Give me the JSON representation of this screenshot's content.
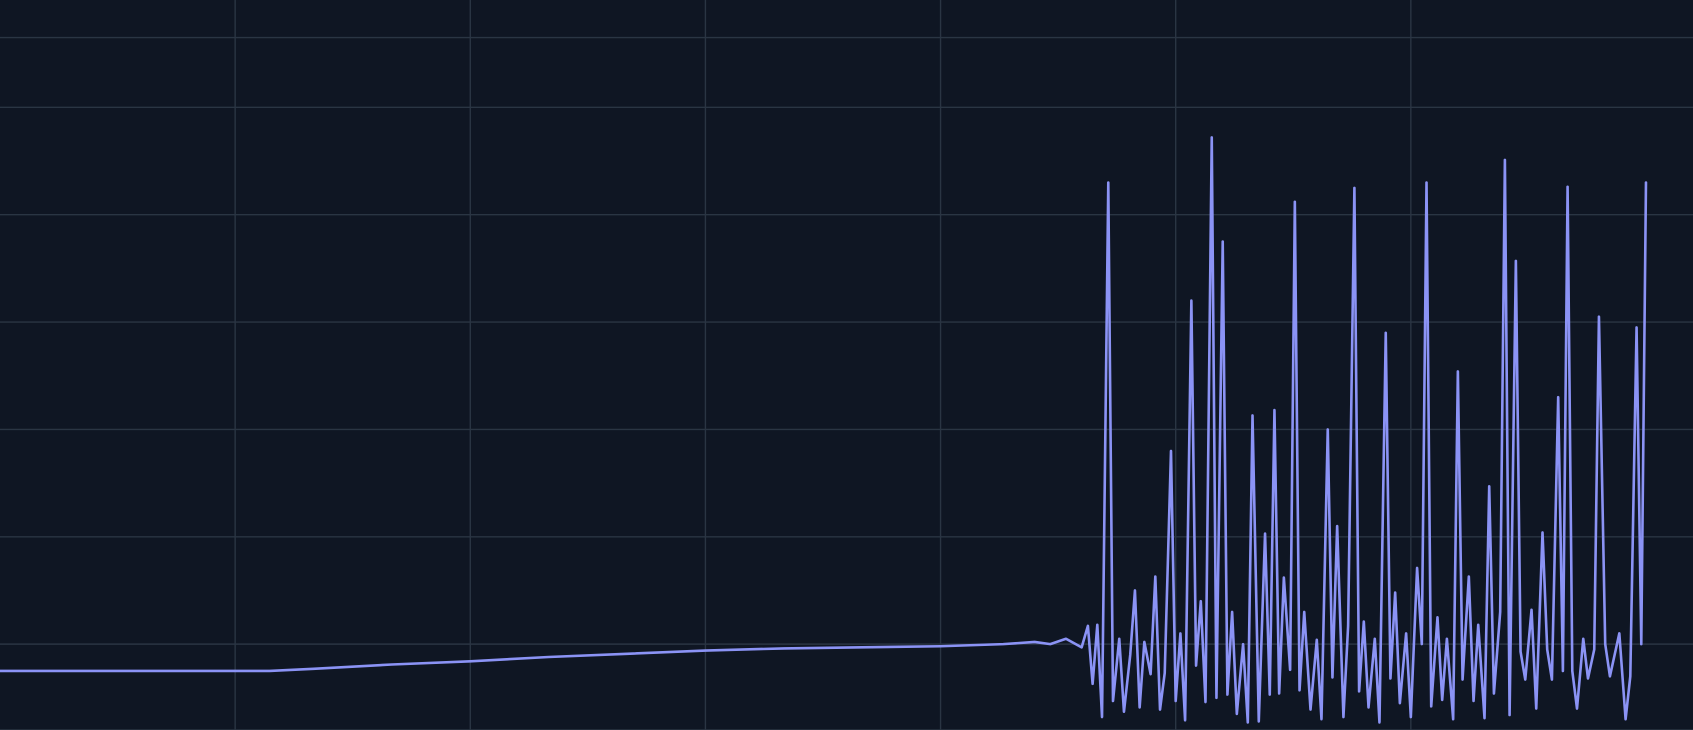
{
  "colors": {
    "background": "#0f1623",
    "grid": "#2a3543",
    "series": "#8b93f5"
  },
  "chart_data": {
    "type": "line",
    "title": "",
    "xlabel": "",
    "ylabel": "",
    "grid": true,
    "legend": "none",
    "xlim": [
      0,
      1080
    ],
    "ylim": [
      -0.8,
      6.0
    ],
    "x_gridlines": [
      150,
      300,
      450,
      600,
      750,
      900
    ],
    "y_gridlines": [
      -0.8,
      0,
      1,
      2,
      3,
      4,
      5,
      5.65
    ],
    "series": [
      {
        "values": [
          [
            0,
            -0.25
          ],
          [
            50,
            -0.25
          ],
          [
            100,
            -0.25
          ],
          [
            150,
            -0.25
          ],
          [
            172,
            -0.25
          ],
          [
            200,
            -0.23
          ],
          [
            250,
            -0.19
          ],
          [
            300,
            -0.16
          ],
          [
            350,
            -0.12
          ],
          [
            400,
            -0.09
          ],
          [
            450,
            -0.06
          ],
          [
            500,
            -0.04
          ],
          [
            550,
            -0.03
          ],
          [
            600,
            -0.02
          ],
          [
            640,
            0.0
          ],
          [
            660,
            0.02
          ],
          [
            670,
            0.0
          ],
          [
            680,
            0.05
          ],
          [
            690,
            -0.03
          ],
          [
            694,
            0.17
          ],
          [
            697,
            -0.37
          ],
          [
            700,
            0.18
          ],
          [
            703,
            -0.68
          ],
          [
            707,
            4.3
          ],
          [
            710,
            -0.53
          ],
          [
            714,
            0.05
          ],
          [
            717,
            -0.63
          ],
          [
            721,
            -0.1
          ],
          [
            724,
            0.5
          ],
          [
            727,
            -0.59
          ],
          [
            730,
            0.02
          ],
          [
            734,
            -0.28
          ],
          [
            737,
            0.63
          ],
          [
            740,
            -0.61
          ],
          [
            743,
            -0.27
          ],
          [
            747,
            1.8
          ],
          [
            750,
            -0.53
          ],
          [
            753,
            0.1
          ],
          [
            756,
            -0.71
          ],
          [
            760,
            3.2
          ],
          [
            763,
            -0.2
          ],
          [
            766,
            0.4
          ],
          [
            769,
            -0.54
          ],
          [
            773,
            4.72
          ],
          [
            776,
            -0.5
          ],
          [
            780,
            3.75
          ],
          [
            783,
            -0.47
          ],
          [
            786,
            0.3
          ],
          [
            789,
            -0.65
          ],
          [
            793,
            0.0
          ],
          [
            796,
            -0.73
          ],
          [
            799,
            2.13
          ],
          [
            803,
            -0.72
          ],
          [
            807,
            1.03
          ],
          [
            810,
            -0.47
          ],
          [
            813,
            2.18
          ],
          [
            816,
            -0.46
          ],
          [
            819,
            0.62
          ],
          [
            823,
            -0.24
          ],
          [
            826,
            4.12
          ],
          [
            829,
            -0.43
          ],
          [
            832,
            0.3
          ],
          [
            836,
            -0.61
          ],
          [
            840,
            0.04
          ],
          [
            843,
            -0.7
          ],
          [
            847,
            2.0
          ],
          [
            850,
            -0.31
          ],
          [
            853,
            1.1
          ],
          [
            857,
            -0.68
          ],
          [
            860,
            0.17
          ],
          [
            864,
            4.25
          ],
          [
            867,
            -0.44
          ],
          [
            870,
            0.21
          ],
          [
            873,
            -0.59
          ],
          [
            877,
            0.05
          ],
          [
            880,
            -0.73
          ],
          [
            884,
            2.9
          ],
          [
            887,
            -0.32
          ],
          [
            890,
            0.48
          ],
          [
            893,
            -0.55
          ],
          [
            897,
            0.1
          ],
          [
            900,
            -0.68
          ],
          [
            904,
            0.71
          ],
          [
            907,
            0.0
          ],
          [
            910,
            4.3
          ],
          [
            913,
            -0.58
          ],
          [
            917,
            0.25
          ],
          [
            920,
            -0.52
          ],
          [
            923,
            0.05
          ],
          [
            927,
            -0.7
          ],
          [
            930,
            2.54
          ],
          [
            933,
            -0.33
          ],
          [
            937,
            0.63
          ],
          [
            940,
            -0.53
          ],
          [
            943,
            0.18
          ],
          [
            947,
            -0.69
          ],
          [
            950,
            1.47
          ],
          [
            953,
            -0.46
          ],
          [
            957,
            0.3
          ],
          [
            960,
            4.51
          ],
          [
            963,
            -0.66
          ],
          [
            967,
            3.57
          ],
          [
            970,
            -0.07
          ],
          [
            973,
            -0.33
          ],
          [
            977,
            0.32
          ],
          [
            980,
            -0.6
          ],
          [
            984,
            1.04
          ],
          [
            987,
            -0.05
          ],
          [
            990,
            -0.33
          ],
          [
            994,
            2.3
          ],
          [
            997,
            -0.25
          ],
          [
            1000,
            4.26
          ],
          [
            1003,
            -0.25
          ],
          [
            1006,
            -0.6
          ],
          [
            1010,
            0.05
          ],
          [
            1013,
            -0.32
          ],
          [
            1017,
            -0.05
          ],
          [
            1020,
            3.05
          ],
          [
            1024,
            0.0
          ],
          [
            1027,
            -0.3
          ],
          [
            1030,
            -0.1
          ],
          [
            1033,
            0.1
          ],
          [
            1037,
            -0.7
          ],
          [
            1040,
            -0.3
          ],
          [
            1044,
            2.95
          ],
          [
            1047,
            0.0
          ],
          [
            1050,
            4.3
          ]
        ]
      }
    ]
  }
}
